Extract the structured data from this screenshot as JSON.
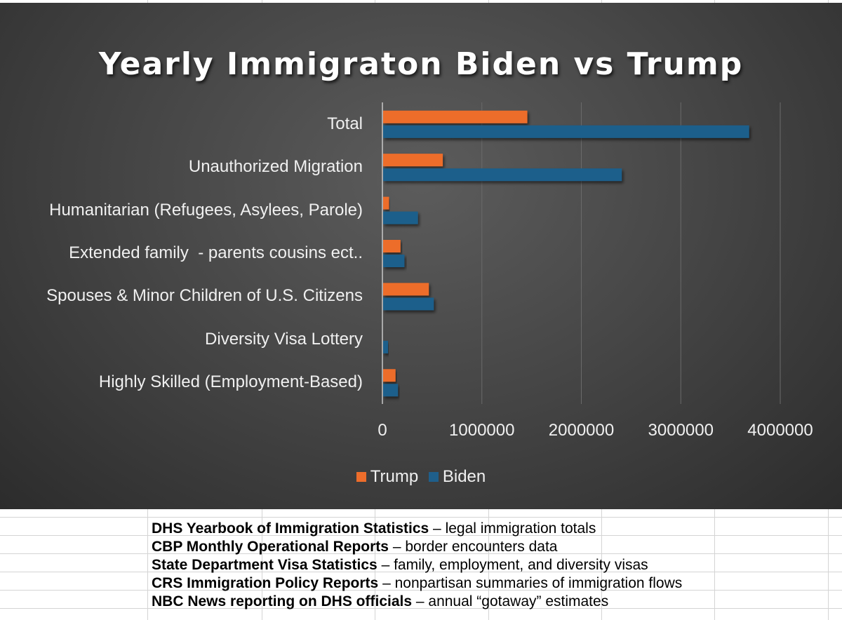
{
  "chart_data": {
    "type": "bar",
    "orientation": "horizontal",
    "title": "Yearly Immigraton Biden vs Trump",
    "categories": [
      "Total",
      "Unauthorized Migration",
      "Humanitarian (Refugees, Asylees, Parole)",
      "Extended family  - parents cousins ect..",
      "Spouses & Minor Children of U.S. Citizens",
      "Diversity Visa Lottery",
      "Highly Skilled (Employment-Based)"
    ],
    "series": [
      {
        "name": "Trump",
        "color": "#ed6d2b",
        "values": [
          1450000,
          600000,
          60000,
          175000,
          460000,
          0,
          125000
        ]
      },
      {
        "name": "Biden",
        "color": "#1f5f8b",
        "values": [
          3680000,
          2400000,
          350000,
          215000,
          510000,
          50000,
          150000
        ]
      }
    ],
    "xlim": [
      0,
      4000000
    ],
    "xticks": [
      "0",
      "1000000",
      "2000000",
      "3000000",
      "4000000"
    ],
    "xlabel": "",
    "ylabel": "",
    "grid": true,
    "legend_position": "bottom"
  },
  "sources": [
    {
      "name": "DHS Yearbook of Immigration Statistics",
      "desc": " – legal immigration totals"
    },
    {
      "name": "CBP Monthly Operational Reports",
      "desc": " – border encounters data"
    },
    {
      "name": "State Department Visa Statistics",
      "desc": " – family, employment, and diversity visas"
    },
    {
      "name": "CRS Immigration Policy Reports",
      "desc": " – nonpartisan summaries of immigration flows"
    },
    {
      "name": "NBC News reporting on DHS officials",
      "desc": " – annual “gotaway” estimates"
    }
  ]
}
